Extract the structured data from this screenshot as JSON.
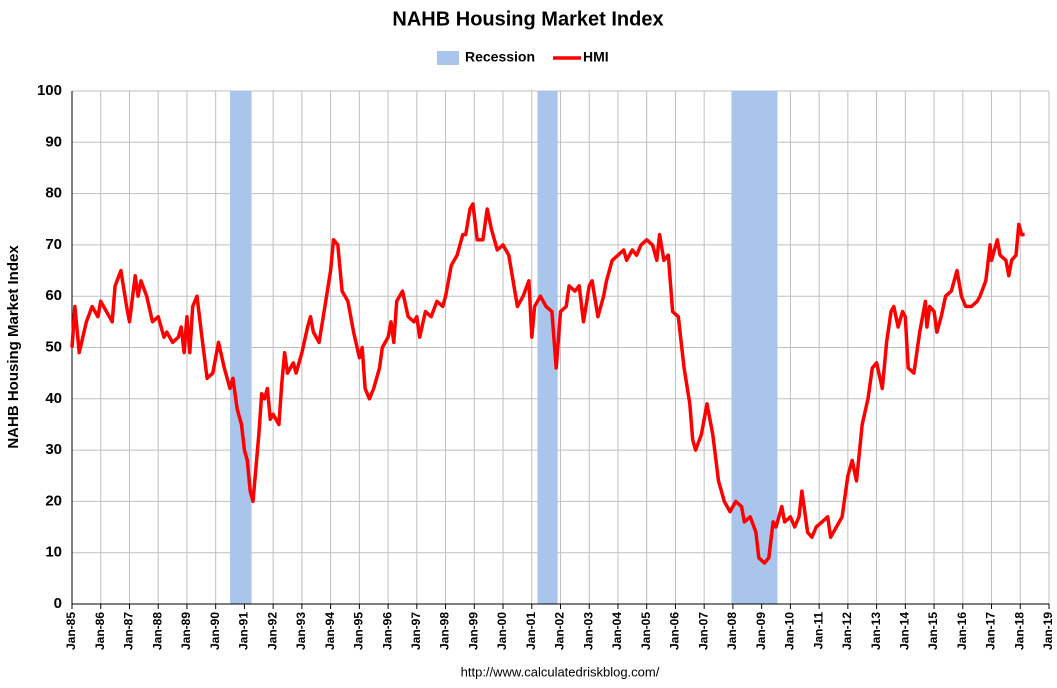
{
  "chart_data": {
    "type": "line",
    "title": "NAHB Housing Market Index",
    "y_label": "NAHB Housing Market Index",
    "source": "http://www.calculatedriskblog.com/",
    "recessions": {
      "name": "Recession",
      "color": "#a9c5eb",
      "spans": [
        [
          1990.5,
          1991.25
        ],
        [
          2001.2,
          2001.9
        ],
        [
          2007.95,
          2009.55
        ]
      ]
    },
    "x": [
      1985.0,
      1985.1,
      1985.25,
      1985.5,
      1985.7,
      1985.9,
      1986.0,
      1986.2,
      1986.4,
      1986.5,
      1986.7,
      1986.9,
      1987.0,
      1987.2,
      1987.3,
      1987.4,
      1987.6,
      1987.8,
      1988.0,
      1988.2,
      1988.3,
      1988.5,
      1988.7,
      1988.8,
      1988.9,
      1989.0,
      1989.1,
      1989.2,
      1989.35,
      1989.5,
      1989.7,
      1989.9,
      1990.1,
      1990.3,
      1990.5,
      1990.6,
      1990.75,
      1990.9,
      1991.0,
      1991.1,
      1991.2,
      1991.3,
      1991.5,
      1991.6,
      1991.7,
      1991.8,
      1991.9,
      1992.0,
      1992.2,
      1992.3,
      1992.4,
      1992.5,
      1992.7,
      1992.8,
      1993.0,
      1993.2,
      1993.3,
      1993.4,
      1993.6,
      1993.8,
      1994.0,
      1994.1,
      1994.25,
      1994.4,
      1994.6,
      1994.8,
      1995.0,
      1995.1,
      1995.2,
      1995.35,
      1995.5,
      1995.7,
      1995.8,
      1996.0,
      1996.1,
      1996.2,
      1996.3,
      1996.5,
      1996.7,
      1996.9,
      1997.0,
      1997.1,
      1997.3,
      1997.5,
      1997.7,
      1997.9,
      1998.0,
      1998.2,
      1998.4,
      1998.6,
      1998.7,
      1998.85,
      1998.95,
      1999.1,
      1999.3,
      1999.45,
      1999.6,
      1999.8,
      2000.0,
      2000.2,
      2000.35,
      2000.5,
      2000.7,
      2000.9,
      2001.0,
      2001.1,
      2001.3,
      2001.5,
      2001.7,
      2001.85,
      2002.0,
      2002.2,
      2002.3,
      2002.5,
      2002.65,
      2002.8,
      2003.0,
      2003.1,
      2003.3,
      2003.5,
      2003.6,
      2003.8,
      2004.0,
      2004.2,
      2004.3,
      2004.5,
      2004.65,
      2004.8,
      2005.0,
      2005.2,
      2005.35,
      2005.45,
      2005.6,
      2005.75,
      2005.9,
      2006.1,
      2006.3,
      2006.5,
      2006.6,
      2006.7,
      2006.9,
      2007.1,
      2007.3,
      2007.5,
      2007.7,
      2007.9,
      2008.1,
      2008.3,
      2008.4,
      2008.6,
      2008.8,
      2008.9,
      2009.1,
      2009.25,
      2009.4,
      2009.5,
      2009.7,
      2009.8,
      2010.0,
      2010.15,
      2010.3,
      2010.4,
      2010.6,
      2010.75,
      2010.9,
      2011.1,
      2011.3,
      2011.4,
      2011.6,
      2011.8,
      2012.0,
      2012.15,
      2012.3,
      2012.5,
      2012.7,
      2012.85,
      2013.0,
      2013.2,
      2013.35,
      2013.5,
      2013.6,
      2013.75,
      2013.9,
      2014.0,
      2014.1,
      2014.3,
      2014.5,
      2014.7,
      2014.75,
      2014.85,
      2015.0,
      2015.1,
      2015.25,
      2015.4,
      2015.6,
      2015.8,
      2015.95,
      2016.1,
      2016.3,
      2016.5,
      2016.6,
      2016.8,
      2016.95,
      2017.0,
      2017.2,
      2017.3,
      2017.5,
      2017.6,
      2017.7,
      2017.85,
      2017.95,
      2018.05,
      2018.15
    ],
    "series": [
      {
        "name": "HMI",
        "color": "#ff0000",
        "values": [
          50,
          58,
          49,
          55,
          58,
          56,
          59,
          57,
          55,
          62,
          65,
          58,
          55,
          64,
          60,
          63,
          60,
          55,
          56,
          52,
          53,
          51,
          52,
          54,
          49,
          56,
          49,
          58,
          60,
          53,
          44,
          45,
          51,
          46,
          42,
          44,
          38,
          35,
          30,
          28,
          22,
          20,
          33,
          41,
          40,
          42,
          36,
          37,
          35,
          43,
          49,
          45,
          47,
          45,
          49,
          54,
          56,
          53,
          51,
          58,
          65,
          71,
          70,
          61,
          59,
          53,
          48,
          50,
          42,
          40,
          42,
          46,
          50,
          52,
          55,
          51,
          59,
          61,
          56,
          55,
          56,
          52,
          57,
          56,
          59,
          58,
          60,
          66,
          68,
          72,
          72,
          77,
          78,
          71,
          71,
          77,
          73,
          69,
          70,
          68,
          63,
          58,
          60,
          63,
          52,
          58,
          60,
          58,
          57,
          46,
          57,
          58,
          62,
          61,
          62,
          55,
          62,
          63,
          56,
          60,
          63,
          67,
          68,
          69,
          67,
          69,
          68,
          70,
          71,
          70,
          67,
          72,
          67,
          68,
          57,
          56,
          46,
          39,
          32,
          30,
          33,
          39,
          33,
          24,
          20,
          18,
          20,
          19,
          16,
          17,
          14,
          9,
          8,
          9,
          16,
          15,
          19,
          16,
          17,
          15,
          17,
          22,
          14,
          13,
          15,
          16,
          17,
          13,
          15,
          17,
          25,
          28,
          24,
          35,
          40,
          46,
          47,
          42,
          51,
          57,
          58,
          54,
          57,
          56,
          46,
          45,
          53,
          59,
          54,
          58,
          57,
          53,
          56,
          60,
          61,
          65,
          60,
          58,
          58,
          59,
          60,
          63,
          70,
          67,
          71,
          68,
          67,
          64,
          67,
          68,
          74,
          72,
          72
        ]
      }
    ],
    "xlim": [
      1985,
      2019
    ],
    "xticks": [
      {
        "value": 1985,
        "label": "Jan-85"
      },
      {
        "value": 1986,
        "label": "Jan-86"
      },
      {
        "value": 1987,
        "label": "Jan-87"
      },
      {
        "value": 1988,
        "label": "Jan-88"
      },
      {
        "value": 1989,
        "label": "Jan-89"
      },
      {
        "value": 1990,
        "label": "Jan-90"
      },
      {
        "value": 1991,
        "label": "Jan-91"
      },
      {
        "value": 1992,
        "label": "Jan-92"
      },
      {
        "value": 1993,
        "label": "Jan-93"
      },
      {
        "value": 1994,
        "label": "Jan-94"
      },
      {
        "value": 1995,
        "label": "Jan-95"
      },
      {
        "value": 1996,
        "label": "Jan-96"
      },
      {
        "value": 1997,
        "label": "Jan-97"
      },
      {
        "value": 1998,
        "label": "Jan-98"
      },
      {
        "value": 1999,
        "label": "Jan-99"
      },
      {
        "value": 2000,
        "label": "Jan-00"
      },
      {
        "value": 2001,
        "label": "Jan-01"
      },
      {
        "value": 2002,
        "label": "Jan-02"
      },
      {
        "value": 2003,
        "label": "Jan-03"
      },
      {
        "value": 2004,
        "label": "Jan-04"
      },
      {
        "value": 2005,
        "label": "Jan-05"
      },
      {
        "value": 2006,
        "label": "Jan-06"
      },
      {
        "value": 2007,
        "label": "Jan-07"
      },
      {
        "value": 2008,
        "label": "Jan-08"
      },
      {
        "value": 2009,
        "label": "Jan-09"
      },
      {
        "value": 2010,
        "label": "Jan-10"
      },
      {
        "value": 2011,
        "label": "Jan-11"
      },
      {
        "value": 2012,
        "label": "Jan-12"
      },
      {
        "value": 2013,
        "label": "Jan-13"
      },
      {
        "value": 2014,
        "label": "Jan-14"
      },
      {
        "value": 2015,
        "label": "Jan-15"
      },
      {
        "value": 2016,
        "label": "Jan-16"
      },
      {
        "value": 2017,
        "label": "Jan-17"
      },
      {
        "value": 2018,
        "label": "Jan-18"
      },
      {
        "value": 2019,
        "label": "Jan-19"
      }
    ],
    "ylim": [
      0,
      100
    ],
    "yticks": [
      0,
      10,
      20,
      30,
      40,
      50,
      60,
      70,
      80,
      90,
      100
    ],
    "grid": true
  }
}
